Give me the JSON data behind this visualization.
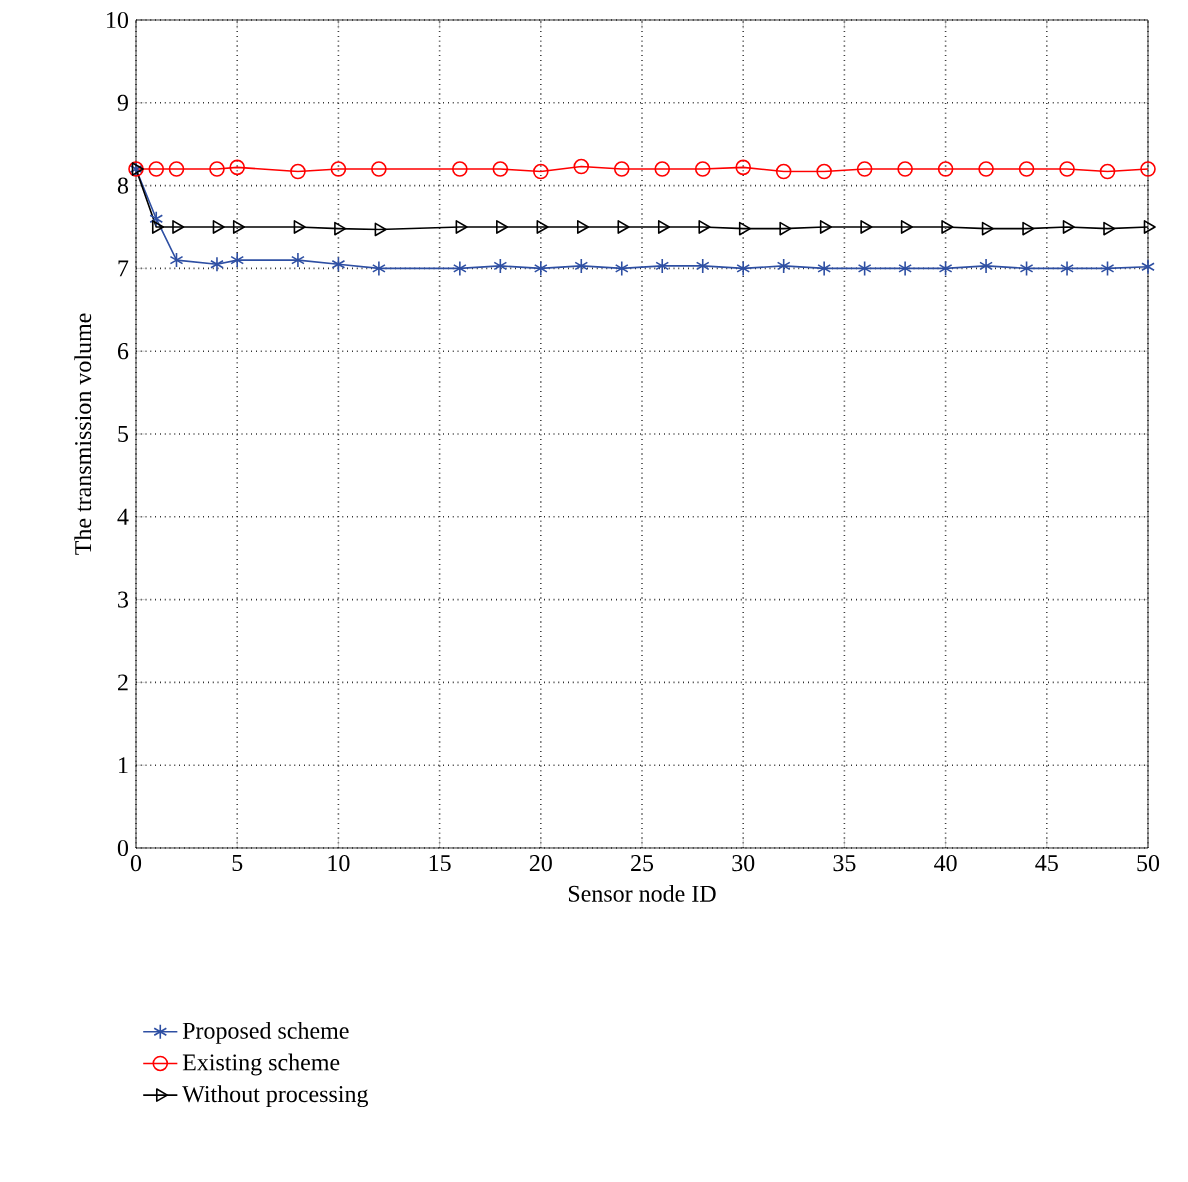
{
  "chart_data": {
    "type": "line",
    "xlabel": "Sensor node ID",
    "ylabel": "The transmission volume",
    "x": [
      0,
      1,
      2,
      4,
      5,
      8,
      10,
      12,
      16,
      18,
      20,
      22,
      24,
      26,
      28,
      30,
      32,
      34,
      36,
      38,
      40,
      42,
      44,
      46,
      48,
      50
    ],
    "series": [
      {
        "name": "Proposed scheme",
        "color": "#2e4fa3",
        "marker": "cross",
        "values": [
          8.2,
          7.6,
          7.1,
          7.05,
          7.1,
          7.1,
          7.05,
          7.0,
          7.0,
          7.03,
          7.0,
          7.03,
          7.0,
          7.03,
          7.03,
          7.0,
          7.03,
          7.0,
          7.0,
          7.0,
          7.0,
          7.03,
          7.0,
          7.0,
          7.0,
          7.02
        ]
      },
      {
        "name": "Existing scheme",
        "color": "#ff0000",
        "marker": "circle",
        "values": [
          8.2,
          8.2,
          8.2,
          8.2,
          8.22,
          8.17,
          8.2,
          8.2,
          8.2,
          8.2,
          8.17,
          8.23,
          8.2,
          8.2,
          8.2,
          8.22,
          8.17,
          8.17,
          8.2,
          8.2,
          8.2,
          8.2,
          8.2,
          8.2,
          8.17,
          8.2
        ]
      },
      {
        "name": "Without processing",
        "color": "#000000",
        "marker": "triangle",
        "values": [
          8.2,
          7.5,
          7.5,
          7.5,
          7.5,
          7.5,
          7.48,
          7.47,
          7.5,
          7.5,
          7.5,
          7.5,
          7.5,
          7.5,
          7.5,
          7.48,
          7.48,
          7.5,
          7.5,
          7.5,
          7.5,
          7.48,
          7.48,
          7.5,
          7.48,
          7.5
        ]
      }
    ],
    "xlim": [
      0,
      50
    ],
    "ylim": [
      0,
      10
    ],
    "xticks": [
      0,
      5,
      10,
      15,
      20,
      25,
      30,
      35,
      40,
      45,
      50
    ],
    "yticks": [
      0,
      1,
      2,
      3,
      4,
      5,
      6,
      7,
      8,
      9,
      10
    ],
    "grid": true,
    "legend": "bottom"
  }
}
